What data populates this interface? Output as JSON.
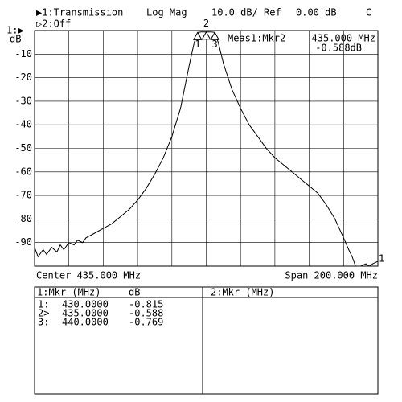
{
  "header": {
    "channel1": "▶1:Transmission",
    "channel2": "▷2:Off",
    "format": "Log Mag",
    "scale": "10.0 dB/ Ref",
    "ref": "0.00 dB",
    "flag": "C",
    "ref_marker": "1:▶",
    "unit": "dB"
  },
  "chart_data": {
    "type": "line",
    "xlim": [
      335,
      535
    ],
    "ylim": [
      -100,
      0
    ],
    "xticks": [
      335,
      355,
      375,
      395,
      415,
      435,
      455,
      475,
      495,
      515,
      535
    ],
    "yticks": [
      -10,
      -20,
      -30,
      -40,
      -50,
      -60,
      -70,
      -80,
      -90
    ],
    "grid": true,
    "series": [
      {
        "name": "1",
        "color": "#000000",
        "x": [
          335,
          337,
          340,
          342,
          345,
          348,
          350,
          352,
          355,
          358,
          360,
          363,
          365,
          370,
          375,
          380,
          385,
          390,
          395,
          400,
          405,
          410,
          415,
          420,
          425,
          428,
          430,
          432,
          435,
          438,
          440,
          442,
          445,
          450,
          455,
          460,
          465,
          470,
          475,
          480,
          485,
          490,
          495,
          500,
          505,
          510,
          515,
          518,
          520,
          522,
          525,
          528,
          530,
          532,
          535
        ],
        "values": [
          -92,
          -96,
          -93,
          -95,
          -92,
          -94,
          -91,
          -93,
          -90,
          -91,
          -89,
          -90,
          -88,
          -86,
          -84,
          -82,
          -79,
          -76,
          -72,
          -67,
          -61,
          -54,
          -45,
          -33,
          -15,
          -5,
          -0.815,
          -0.6,
          -0.588,
          -0.6,
          -0.769,
          -5,
          -14,
          -25,
          -33,
          -40,
          -45,
          -50,
          -54,
          -57,
          -60,
          -63,
          -66,
          -69,
          -74,
          -80,
          -88,
          -93,
          -96,
          -100,
          -100,
          -99,
          -100,
          -99,
          -98
        ]
      }
    ],
    "markers": {
      "labels": [
        "1",
        "2",
        "3"
      ],
      "x": [
        430,
        435,
        440
      ],
      "values": [
        -0.815,
        -0.588,
        -0.769
      ],
      "x_labels": [
        "430.0000",
        "435.0000",
        "440.0000"
      ],
      "value_labels": [
        "-0.815",
        "-0.588",
        "-0.769"
      ],
      "row_prefixes": [
        "1:",
        "2>",
        "3:"
      ]
    },
    "readout": {
      "title": "Meas1:Mkr2",
      "freq": "435.000 MHz",
      "value": "-0.588dB"
    },
    "center": "Center 435.000 MHz",
    "span": "Span 200.000 MHz"
  },
  "table": {
    "header1": "1:Mkr (MHz)",
    "header_db": "dB",
    "header2": "2:Mkr (MHz)"
  }
}
